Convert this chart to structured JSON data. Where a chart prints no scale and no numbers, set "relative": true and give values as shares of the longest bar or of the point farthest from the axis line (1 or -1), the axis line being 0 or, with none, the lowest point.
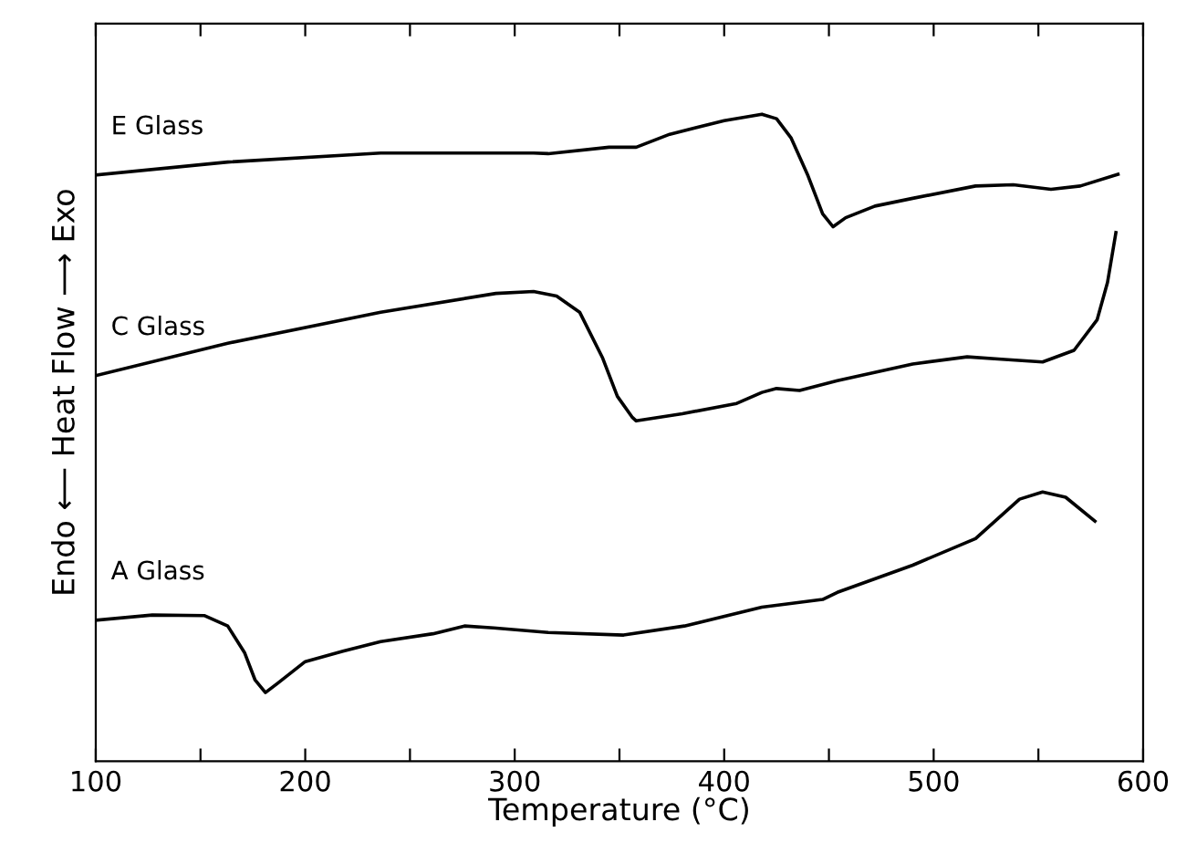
{
  "chart_data": {
    "type": "line",
    "relative": true,
    "xlabel": "Temperature (°C)",
    "ylabel": "Endo ⟵ Heat Flow ⟶ Exo",
    "xlim": [
      100,
      600
    ],
    "xticks": [
      100,
      {
        "value": 150,
        "label": null
      },
      200,
      {
        "value": 250,
        "label": null
      },
      300,
      {
        "value": 350,
        "label": null
      },
      400,
      {
        "value": 450,
        "label": null
      },
      500,
      {
        "value": 550,
        "label": null
      },
      600
    ],
    "grid": false,
    "legend": false,
    "marker": "none",
    "line_style": "solid",
    "series": [
      {
        "name": "E Glass",
        "color": "#000000",
        "x": [
          100,
          163,
          236,
          309,
          316,
          345,
          358,
          374,
          400,
          418,
          425,
          432,
          440,
          447,
          452,
          458,
          472,
          490,
          520,
          538,
          556,
          570,
          588
        ],
        "values": [
          0.906,
          0.926,
          0.94,
          0.94,
          0.939,
          0.949,
          0.949,
          0.969,
          0.99,
          1.0,
          0.993,
          0.963,
          0.905,
          0.846,
          0.826,
          0.84,
          0.858,
          0.87,
          0.889,
          0.891,
          0.884,
          0.889,
          0.907
        ]
      },
      {
        "name": "C Glass",
        "color": "#000000",
        "x": [
          100,
          163,
          236,
          291,
          309,
          320,
          331,
          342,
          349,
          356,
          358,
          380,
          406,
          418,
          425,
          436,
          454,
          490,
          516,
          534,
          552,
          567,
          578,
          583,
          587
        ],
        "values": [
          0.596,
          0.646,
          0.694,
          0.723,
          0.726,
          0.719,
          0.694,
          0.623,
          0.564,
          0.532,
          0.526,
          0.537,
          0.553,
          0.57,
          0.576,
          0.573,
          0.588,
          0.614,
          0.625,
          0.621,
          0.617,
          0.635,
          0.682,
          0.74,
          0.817
        ]
      },
      {
        "name": "A Glass",
        "color": "#000000",
        "x": [
          100,
          127,
          152,
          163,
          171,
          176,
          181,
          187,
          200,
          218,
          236,
          261,
          276,
          290,
          316,
          352,
          381,
          418,
          447,
          454,
          490,
          520,
          541,
          552,
          563,
          577
        ],
        "values": [
          0.218,
          0.226,
          0.225,
          0.209,
          0.168,
          0.126,
          0.106,
          0.121,
          0.154,
          0.17,
          0.185,
          0.197,
          0.209,
          0.206,
          0.199,
          0.195,
          0.209,
          0.238,
          0.25,
          0.261,
          0.303,
          0.344,
          0.405,
          0.416,
          0.408,
          0.371
        ]
      }
    ]
  }
}
